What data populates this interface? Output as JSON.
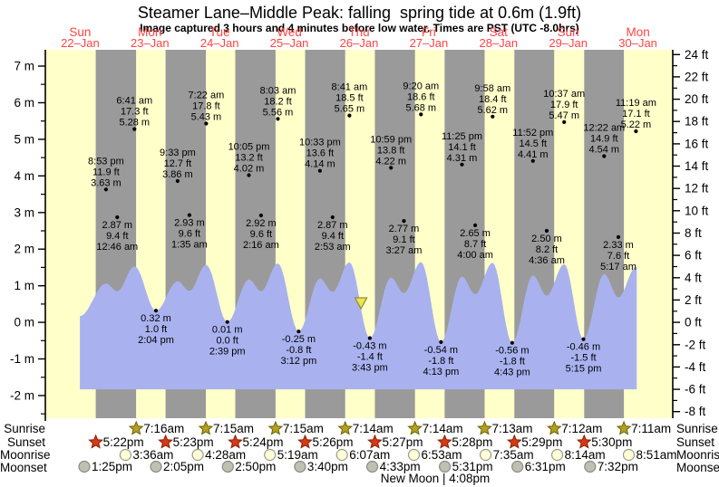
{
  "title": "Steamer Lane–Middle Peak: falling  spring tide at 0.6m (1.9ft)",
  "subtitle": "Image captured 3 hours and 4 minutes before low water. Times are PST (UTC -8.0hrs)",
  "days": [
    {
      "name": "Sun",
      "date": "22–Jan"
    },
    {
      "name": "Mon",
      "date": "23–Jan"
    },
    {
      "name": "Tue",
      "date": "24–Jan"
    },
    {
      "name": "Wed",
      "date": "25–Jan"
    },
    {
      "name": "Thu",
      "date": "26–Jan"
    },
    {
      "name": "Fri",
      "date": "27–Jan"
    },
    {
      "name": "Sat",
      "date": "28–Jan"
    },
    {
      "name": "Sun",
      "date": "29–Jan"
    },
    {
      "name": "Mon",
      "date": "30–Jan"
    }
  ],
  "axes": {
    "left": {
      "values": [
        7,
        6,
        5,
        4,
        3,
        2,
        1,
        0,
        -1,
        -2
      ],
      "labels": [
        "7 m",
        "6 m",
        "5 m",
        "4 m",
        "3 m",
        "2 m",
        "1 m",
        "0 m",
        "-1 m",
        "-2 m"
      ]
    },
    "right": {
      "values": [
        24,
        22,
        20,
        18,
        16,
        14,
        12,
        10,
        8,
        6,
        4,
        2,
        0,
        -2,
        -4,
        -6,
        -8
      ],
      "labels": [
        "24 ft",
        "22 ft",
        "20 ft",
        "18 ft",
        "16 ft",
        "14 ft",
        "12 ft",
        "10 ft",
        "8 ft",
        "6 ft",
        "4 ft",
        "2 ft",
        "0 ft",
        "-2 ft",
        "-4 ft",
        "-6 ft",
        "-8 ft"
      ]
    }
  },
  "chart_data": {
    "type": "area",
    "title": "Steamer Lane–Middle Peak tide times",
    "x_range_days": 9,
    "y_axis_m_range": [
      -2.6,
      7.45
    ],
    "y_axis_ft_range": [
      -8,
      24
    ],
    "tide_events": [
      {
        "day": 0,
        "time": "8:53 pm",
        "height_ft": "11.9 ft",
        "height_m": "3.63 m",
        "label_position": "above"
      },
      {
        "day": 1,
        "time": "12:46 am",
        "height_ft": "9.4 ft",
        "height_m": "2.87 m",
        "label_position": "below"
      },
      {
        "day": 1,
        "time": "6:41 am",
        "height_ft": "17.3 ft",
        "height_m": "5.28 m",
        "label_position": "above"
      },
      {
        "day": 1,
        "time": "2:04 pm",
        "height_ft": "1.0 ft",
        "height_m": "0.32 m",
        "label_position": "below"
      },
      {
        "day": 1,
        "time": "9:33 pm",
        "height_ft": "12.7 ft",
        "height_m": "3.86 m",
        "label_position": "above"
      },
      {
        "day": 2,
        "time": "1:35 am",
        "height_ft": "9.6 ft",
        "height_m": "2.93 m",
        "label_position": "below"
      },
      {
        "day": 2,
        "time": "7:22 am",
        "height_ft": "17.8 ft",
        "height_m": "5.43 m",
        "label_position": "above"
      },
      {
        "day": 2,
        "time": "2:39 pm",
        "height_ft": "0.0 ft",
        "height_m": "0.01 m",
        "label_position": "below"
      },
      {
        "day": 2,
        "time": "10:05 pm",
        "height_ft": "13.2 ft",
        "height_m": "4.02 m",
        "label_position": "above"
      },
      {
        "day": 3,
        "time": "2:16 am",
        "height_ft": "9.6 ft",
        "height_m": "2.92 m",
        "label_position": "below"
      },
      {
        "day": 3,
        "time": "8:03 am",
        "height_ft": "18.2 ft",
        "height_m": "5.56 m",
        "label_position": "above"
      },
      {
        "day": 3,
        "time": "3:12 pm",
        "height_ft": "-0.8 ft",
        "height_m": "-0.25 m",
        "label_position": "below"
      },
      {
        "day": 3,
        "time": "10:33 pm",
        "height_ft": "13.6 ft",
        "height_m": "4.14 m",
        "label_position": "above"
      },
      {
        "day": 4,
        "time": "2:53 am",
        "height_ft": "9.4 ft",
        "height_m": "2.87 m",
        "label_position": "below"
      },
      {
        "day": 4,
        "time": "8:41 am",
        "height_ft": "18.5 ft",
        "height_m": "5.65 m",
        "label_position": "above"
      },
      {
        "day": 4,
        "time": "3:43 pm",
        "height_ft": "-1.4 ft",
        "height_m": "-0.43 m",
        "label_position": "below"
      },
      {
        "day": 4,
        "time": "10:59 pm",
        "height_ft": "13.8 ft",
        "height_m": "4.22 m",
        "label_position": "above"
      },
      {
        "day": 5,
        "time": "3:27 am",
        "height_ft": "9.1 ft",
        "height_m": "2.77 m",
        "label_position": "below"
      },
      {
        "day": 5,
        "time": "9:20 am",
        "height_ft": "18.6 ft",
        "height_m": "5.68 m",
        "label_position": "above"
      },
      {
        "day": 5,
        "time": "4:13 pm",
        "height_ft": "-1.8 ft",
        "height_m": "-0.54 m",
        "label_position": "below"
      },
      {
        "day": 5,
        "time": "11:25 pm",
        "height_ft": "14.1 ft",
        "height_m": "4.31 m",
        "label_position": "above"
      },
      {
        "day": 6,
        "time": "4:00 am",
        "height_ft": "8.7 ft",
        "height_m": "2.65 m",
        "label_position": "below"
      },
      {
        "day": 6,
        "time": "9:58 am",
        "height_ft": "18.4 ft",
        "height_m": "5.62 m",
        "label_position": "above"
      },
      {
        "day": 6,
        "time": "4:43 pm",
        "height_ft": "-1.8 ft",
        "height_m": "-0.56 m",
        "label_position": "below"
      },
      {
        "day": 6,
        "time": "11:52 pm",
        "height_ft": "14.5 ft",
        "height_m": "4.41 m",
        "label_position": "above"
      },
      {
        "day": 7,
        "time": "4:36 am",
        "height_ft": "8.2 ft",
        "height_m": "2.50 m",
        "label_position": "below"
      },
      {
        "day": 7,
        "time": "10:37 am",
        "height_ft": "17.9 ft",
        "height_m": "5.47 m",
        "label_position": "above"
      },
      {
        "day": 7,
        "time": "5:15 pm",
        "height_ft": "-1.5 ft",
        "height_m": "-0.46 m",
        "label_position": "below"
      },
      {
        "day": 8,
        "time": "12:22 am",
        "height_ft": "14.9 ft",
        "height_m": "4.54 m",
        "label_position": "above"
      },
      {
        "day": 8,
        "time": "5:17 am",
        "height_ft": "7.6 ft",
        "height_m": "2.33 m",
        "label_position": "below"
      },
      {
        "day": 8,
        "time": "11:19 am",
        "height_ft": "17.1 ft",
        "height_m": "5.22 m",
        "label_position": "above"
      }
    ],
    "curve_points": [
      [
        11.9,
        0.17
      ],
      [
        20.88,
        1.06
      ],
      [
        24.77,
        0.85
      ],
      [
        30.68,
        1.53
      ],
      [
        38.07,
        0.32
      ],
      [
        45.55,
        1.12
      ],
      [
        49.58,
        0.86
      ],
      [
        55.37,
        1.57
      ],
      [
        62.65,
        0.01
      ],
      [
        70.08,
        1.17
      ],
      [
        74.27,
        0.85
      ],
      [
        80.05,
        1.61
      ],
      [
        87.2,
        -0.25
      ],
      [
        94.55,
        1.2
      ],
      [
        98.88,
        0.83
      ],
      [
        104.68,
        1.64
      ],
      [
        111.72,
        -0.43
      ],
      [
        118.98,
        1.22
      ],
      [
        123.45,
        0.8
      ],
      [
        129.33,
        1.65
      ],
      [
        136.22,
        -0.54
      ],
      [
        143.42,
        1.25
      ],
      [
        148.0,
        0.77
      ],
      [
        153.97,
        1.63
      ],
      [
        160.72,
        -0.56
      ],
      [
        167.87,
        1.28
      ],
      [
        172.6,
        0.73
      ],
      [
        178.62,
        1.59
      ],
      [
        185.25,
        -0.46
      ],
      [
        192.37,
        1.32
      ],
      [
        197.28,
        0.68
      ],
      [
        203.32,
        1.51
      ],
      [
        203.6,
        1.5
      ]
    ],
    "curve_base_m": -1.83,
    "now_marker": {
      "day": 4,
      "time": "12:39 pm"
    }
  },
  "astro": {
    "sunrise": {
      "label": "Sunrise",
      "entries": [
        {
          "day": 1,
          "time": "7:16am"
        },
        {
          "day": 2,
          "time": "7:15am"
        },
        {
          "day": 3,
          "time": "7:15am"
        },
        {
          "day": 4,
          "time": "7:14am"
        },
        {
          "day": 5,
          "time": "7:14am"
        },
        {
          "day": 6,
          "time": "7:13am"
        },
        {
          "day": 7,
          "time": "7:12am"
        },
        {
          "day": 8,
          "time": "7:11am"
        }
      ]
    },
    "sunset": {
      "label": "Sunset",
      "entries": [
        {
          "day": 0,
          "time": "5:22pm"
        },
        {
          "day": 1,
          "time": "5:23pm"
        },
        {
          "day": 2,
          "time": "5:24pm"
        },
        {
          "day": 3,
          "time": "5:26pm"
        },
        {
          "day": 4,
          "time": "5:27pm"
        },
        {
          "day": 5,
          "time": "5:28pm"
        },
        {
          "day": 6,
          "time": "5:29pm"
        },
        {
          "day": 7,
          "time": "5:30pm"
        }
      ]
    },
    "moonrise": {
      "label": "Moonrise",
      "entries": [
        {
          "day": 1,
          "time": "3:36am"
        },
        {
          "day": 2,
          "time": "4:28am"
        },
        {
          "day": 3,
          "time": "5:19am"
        },
        {
          "day": 4,
          "time": "6:07am"
        },
        {
          "day": 5,
          "time": "6:53am"
        },
        {
          "day": 6,
          "time": "7:35am"
        },
        {
          "day": 7,
          "time": "8:14am"
        },
        {
          "day": 8,
          "time": "8:51am"
        }
      ]
    },
    "moonset": {
      "label": "Moonset",
      "entries": [
        {
          "day": 0,
          "time": "1:25pm"
        },
        {
          "day": 1,
          "time": "2:05pm"
        },
        {
          "day": 2,
          "time": "2:50pm"
        },
        {
          "day": 3,
          "time": "3:40pm"
        },
        {
          "day": 4,
          "time": "4:33pm"
        },
        {
          "day": 5,
          "time": "5:31pm"
        },
        {
          "day": 6,
          "time": "6:31pm"
        },
        {
          "day": 7,
          "time": "7:32pm"
        }
      ]
    },
    "new_moon": "New Moon | 4:08pm"
  },
  "colors": {
    "day_band": "#ffffca",
    "night_band": "#9a9a9a",
    "wave": "#a9b2ef",
    "heading_red": "#ff4343",
    "sunrise_star": "#b3a024",
    "sunrise_star_edge": "#6e6200",
    "sunset_star": "#d63a17",
    "sunset_star_edge": "#8c1c00",
    "moonrise_circle": "#ffffd8",
    "moonrise_circle_edge": "#9a9a8a",
    "moonset_circle": "#bfbfb2",
    "moonset_circle_edge": "#8a8a80",
    "now_marker": "#ece54e",
    "now_marker_edge": "#8f8f3a"
  }
}
